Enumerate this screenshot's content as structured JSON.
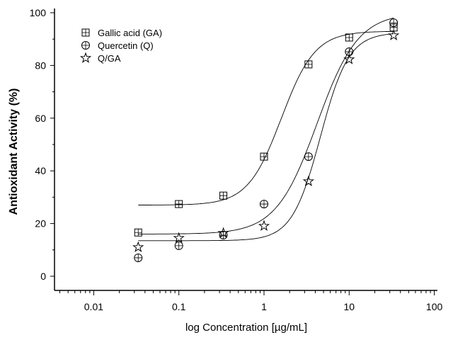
{
  "chart_data": {
    "type": "scatter",
    "title": "",
    "xlabel": "log Concentration [µg/mL]",
    "ylabel": "Antioxidant Activity (%)",
    "xscale": "log",
    "xlim": [
      0.003,
      100
    ],
    "ylim": [
      -5,
      100
    ],
    "xticks": [
      0.01,
      0.1,
      1,
      10,
      100
    ],
    "xtick_labels": [
      "0.01",
      "0.1",
      "1",
      "10",
      "100"
    ],
    "yticks": [
      0,
      20,
      40,
      60,
      80,
      100
    ],
    "ytick_labels": [
      "0",
      "20",
      "40",
      "60",
      "80",
      "100"
    ],
    "grid": false,
    "legend_position": "top-left",
    "x": [
      0.0333,
      0.1,
      0.333,
      1,
      3.33,
      10,
      33.3
    ],
    "series": [
      {
        "name": "Gallic acid (GA)",
        "marker": "square",
        "values": [
          16.6,
          27.4,
          30.6,
          45.4,
          80.4,
          90.6,
          94.4
        ],
        "fit": {
          "bottom": 27,
          "top": 93,
          "x0": 1.6,
          "p": 2.2
        }
      },
      {
        "name": "Quercetin (Q)",
        "marker": "circle",
        "values": [
          7,
          11.6,
          15.6,
          27.4,
          45.4,
          85.2,
          96.2
        ],
        "fit": {
          "bottom": 16,
          "top": 100,
          "x0": 4.2,
          "p": 1.8
        }
      },
      {
        "name": "Q/GA",
        "marker": "star",
        "values": [
          11,
          14.5,
          16.4,
          19.1,
          36,
          82.3,
          91.4
        ],
        "fit": {
          "bottom": 13.5,
          "top": 92.5,
          "x0": 4.6,
          "p": 2.6
        }
      }
    ]
  }
}
